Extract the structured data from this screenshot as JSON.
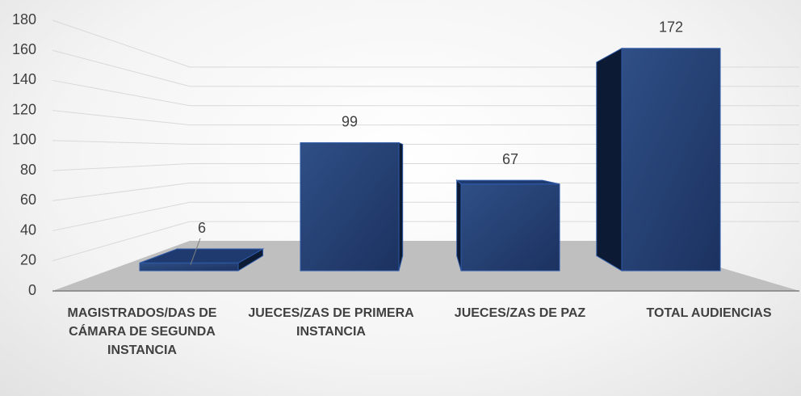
{
  "chart_data": {
    "type": "bar3d",
    "categories": [
      "MAGISTRADOS/DAS DE CÁMARA DE SEGUNDA INSTANCIA",
      "JUECES/ZAS DE PRIMERA INSTANCIA",
      "JUECES/ZAS DE PAZ",
      "TOTAL AUDIENCIAS"
    ],
    "values": [
      6,
      99,
      67,
      172
    ],
    "color": "#203864",
    "ylim": [
      0,
      180
    ],
    "yticks": [
      0,
      20,
      40,
      60,
      80,
      100,
      120,
      140,
      160,
      180
    ],
    "grid": true
  }
}
